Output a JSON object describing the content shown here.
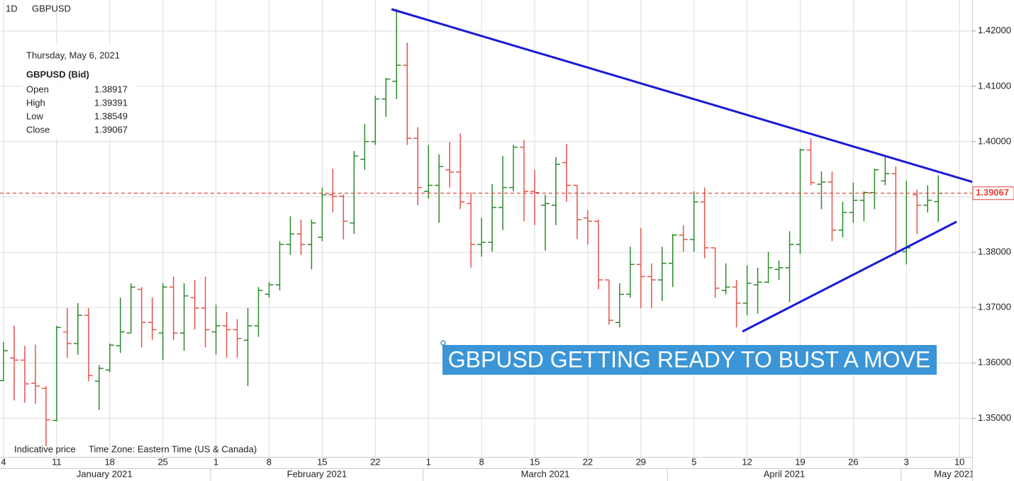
{
  "header": {
    "interval": "1D",
    "symbol": "GBPUSD"
  },
  "info_box": {
    "date": "Thursday, May 6, 2021",
    "instrument": "GBPUSD (Bid)",
    "labels": [
      "Open",
      "High",
      "Low",
      "Close"
    ]
  },
  "chart_data": {
    "type": "ohlc",
    "categories": [
      "4",
      null,
      null,
      null,
      null,
      "11",
      null,
      null,
      null,
      null,
      "18",
      null,
      null,
      null,
      null,
      "25",
      null,
      null,
      null,
      null,
      "1",
      null,
      null,
      null,
      null,
      "8",
      null,
      null,
      null,
      null,
      "15",
      null,
      null,
      null,
      null,
      "22",
      null,
      null,
      null,
      null,
      "1",
      null,
      null,
      null,
      null,
      "8",
      null,
      null,
      null,
      null,
      "15",
      null,
      null,
      null,
      null,
      "22",
      null,
      null,
      null,
      null,
      "29",
      null,
      null,
      null,
      null,
      "5",
      null,
      null,
      null,
      null,
      "12",
      null,
      null,
      null,
      null,
      "19",
      null,
      null,
      null,
      null,
      "26",
      null,
      null,
      null,
      null,
      "3",
      null,
      null,
      null,
      null,
      "10"
    ],
    "open": [
      1.3568,
      1.3609,
      1.3605,
      1.3563,
      1.3554,
      1.3496,
      1.3656,
      1.3635,
      1.3686,
      1.3567,
      1.3587,
      1.3631,
      1.3654,
      1.3733,
      1.3673,
      1.3654,
      1.3737,
      1.3654,
      1.3718,
      1.3699,
      1.3656,
      1.3667,
      1.366,
      1.3641,
      1.3667,
      1.3724,
      1.3741,
      1.3814,
      1.3833,
      1.3814,
      1.3827,
      1.3904,
      1.3901,
      1.3853,
      1.3968,
      1.4,
      1.4077,
      1.4109,
      1.4138,
      1.4006,
      1.391,
      1.3921,
      1.3949,
      1.3945,
      1.3888,
      1.3814,
      1.3818,
      1.3881,
      1.3917,
      1.399,
      1.391,
      1.3885,
      1.3885,
      1.3962,
      1.3921,
      1.3862,
      1.3856,
      1.375,
      1.3673,
      1.3724,
      1.3778,
      1.3756,
      1.375,
      1.378,
      1.3831,
      1.3823,
      1.3891,
      1.3808,
      1.3731,
      1.3737,
      1.3708,
      1.3741,
      1.3746,
      1.3769,
      1.3772,
      1.3814,
      1.3985,
      1.3923,
      1.3927,
      1.384,
      1.3872,
      1.3894,
      1.3908,
      1.3929,
      1.3942,
      1.3801,
      1.3904,
      1.3885,
      1.38917,
      null,
      null
    ],
    "high": [
      1.3638,
      1.3667,
      1.3631,
      1.3633,
      1.3558,
      1.3667,
      1.3699,
      1.3708,
      1.3699,
      1.3596,
      1.3635,
      1.3718,
      1.3744,
      1.3737,
      1.3718,
      1.3744,
      1.3756,
      1.3744,
      1.375,
      1.3756,
      1.3705,
      1.3692,
      1.3679,
      1.3699,
      1.3737,
      1.3746,
      1.382,
      1.3865,
      1.3859,
      1.3859,
      1.3917,
      1.3951,
      1.3904,
      1.3983,
      1.4032,
      1.4083,
      1.4115,
      1.424,
      1.4179,
      1.4026,
      1.3994,
      1.3977,
      1.4,
      1.4015,
      1.3908,
      1.3862,
      1.3923,
      1.3974,
      1.3994,
      1.4003,
      1.3949,
      1.3904,
      1.3972,
      1.3996,
      1.3921,
      1.3876,
      1.3859,
      1.375,
      1.3744,
      1.381,
      1.3844,
      1.378,
      1.381,
      1.3833,
      1.3849,
      1.391,
      1.3917,
      1.3808,
      1.378,
      1.375,
      1.3776,
      1.3772,
      1.3801,
      1.3785,
      1.3838,
      1.3987,
      1.4006,
      1.3946,
      1.3946,
      1.3891,
      1.3926,
      1.391,
      1.3951,
      1.3974,
      1.3955,
      1.3929,
      1.3913,
      1.3921,
      1.39391,
      null,
      null
    ],
    "low": [
      1.3567,
      1.3532,
      1.3528,
      1.3526,
      1.3449,
      1.3494,
      1.3609,
      1.3615,
      1.3567,
      1.3515,
      1.3583,
      1.3618,
      1.3654,
      1.3628,
      1.3641,
      1.3605,
      1.3641,
      1.3622,
      1.366,
      1.3628,
      1.3615,
      1.3609,
      1.3609,
      1.3558,
      1.3647,
      1.3718,
      1.3731,
      1.3795,
      1.3795,
      1.3769,
      1.382,
      1.3872,
      1.3823,
      1.3833,
      1.3949,
      1.3994,
      1.4045,
      1.4077,
      1.3994,
      1.3885,
      1.3897,
      1.3853,
      1.3917,
      1.3878,
      1.3772,
      1.3792,
      1.3801,
      1.384,
      1.391,
      1.3856,
      1.3849,
      1.3803,
      1.3849,
      1.3891,
      1.3824,
      1.3814,
      1.3733,
      1.3669,
      1.3664,
      1.3718,
      1.3699,
      1.3699,
      1.3712,
      1.3737,
      1.3801,
      1.3801,
      1.3789,
      1.3718,
      1.3724,
      1.3664,
      1.3686,
      1.3689,
      1.3744,
      1.375,
      1.371,
      1.3797,
      1.3921,
      1.3878,
      1.382,
      1.3827,
      1.3853,
      1.3856,
      1.3878,
      1.3921,
      1.3795,
      1.3778,
      1.3833,
      1.3872,
      1.38549,
      null,
      null
    ],
    "close": [
      1.3622,
      1.3605,
      1.3562,
      1.3558,
      1.3497,
      1.3664,
      1.3635,
      1.3686,
      1.3577,
      1.359,
      1.3632,
      1.3656,
      1.3737,
      1.3673,
      1.366,
      1.3737,
      1.3654,
      1.3721,
      1.3699,
      1.366,
      1.3667,
      1.366,
      1.3644,
      1.3667,
      1.3731,
      1.3741,
      1.3814,
      1.3833,
      1.3814,
      1.3853,
      1.3904,
      1.3901,
      1.3856,
      1.3974,
      1.4,
      1.4077,
      1.4113,
      1.4138,
      1.4006,
      1.3917,
      1.3921,
      1.3955,
      1.3945,
      1.3891,
      1.3814,
      1.3818,
      1.3881,
      1.3917,
      1.399,
      1.391,
      1.3908,
      1.3888,
      1.3959,
      1.3921,
      1.3859,
      1.3856,
      1.375,
      1.3677,
      1.3724,
      1.3778,
      1.3756,
      1.375,
      1.378,
      1.3831,
      1.3823,
      1.3891,
      1.3808,
      1.3735,
      1.3737,
      1.3708,
      1.3744,
      1.3746,
      1.3772,
      1.3772,
      1.3814,
      1.3985,
      1.3926,
      1.3927,
      1.384,
      1.3872,
      1.3894,
      1.3908,
      1.3949,
      1.3942,
      1.3801,
      1.3808,
      1.3885,
      1.3894,
      1.39067,
      null,
      null
    ],
    "up_color": "#2b8a2b",
    "down_color": "#e5544c",
    "last_price_color": "#e0443c",
    "ylim": [
      1.343,
      1.4256
    ],
    "yticks": [
      {
        "value": 1.35,
        "label": "1.35000"
      },
      {
        "value": 1.36,
        "label": "1.36000"
      },
      {
        "value": 1.37,
        "label": "1.37000"
      },
      {
        "value": 1.38,
        "label": "1.38000"
      },
      {
        "value": 1.39,
        "label": "1.39000"
      },
      {
        "value": 1.4,
        "label": "1.40000"
      },
      {
        "value": 1.41,
        "label": "1.41000"
      },
      {
        "value": 1.42,
        "label": "1.42000"
      }
    ],
    "grid": true,
    "months": [
      {
        "label": "January 2021",
        "first": 0
      },
      {
        "label": "February 2021",
        "first": 20
      },
      {
        "label": "March 2021",
        "first": 40
      },
      {
        "label": "April 2021",
        "first": 63
      },
      {
        "label": "May 2021",
        "first": 85
      }
    ],
    "annotation": "GBPUSD GETTING READY TO BUST A MOVE",
    "footnotes": [
      "Indicative price",
      "Time Zone: Eastern Time (US & Canada)"
    ]
  }
}
